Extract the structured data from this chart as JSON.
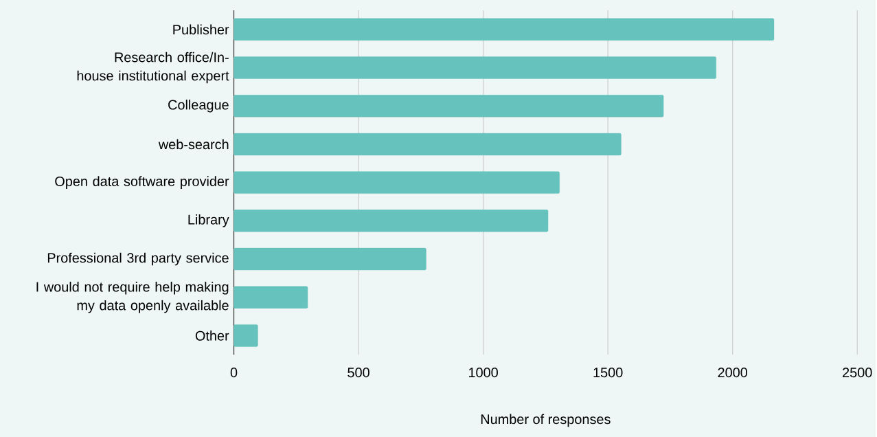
{
  "chart_data": {
    "type": "bar",
    "orientation": "horizontal",
    "xlabel": "Number of responses",
    "categories": [
      "Publisher",
      "Research office/In-house institutional expert",
      "Colleague",
      "web-search",
      "Open data software provider",
      "Library",
      "Professional 3rd party service",
      "I would not require help making my data openly available",
      "Other"
    ],
    "values": [
      2166,
      1934,
      1723,
      1553,
      1306,
      1260,
      771,
      296,
      96
    ],
    "color": "#66c2bd",
    "xlim": [
      0,
      2500
    ],
    "xticks": [
      0,
      500,
      1000,
      1500,
      2000,
      2500
    ],
    "grid": "x"
  }
}
